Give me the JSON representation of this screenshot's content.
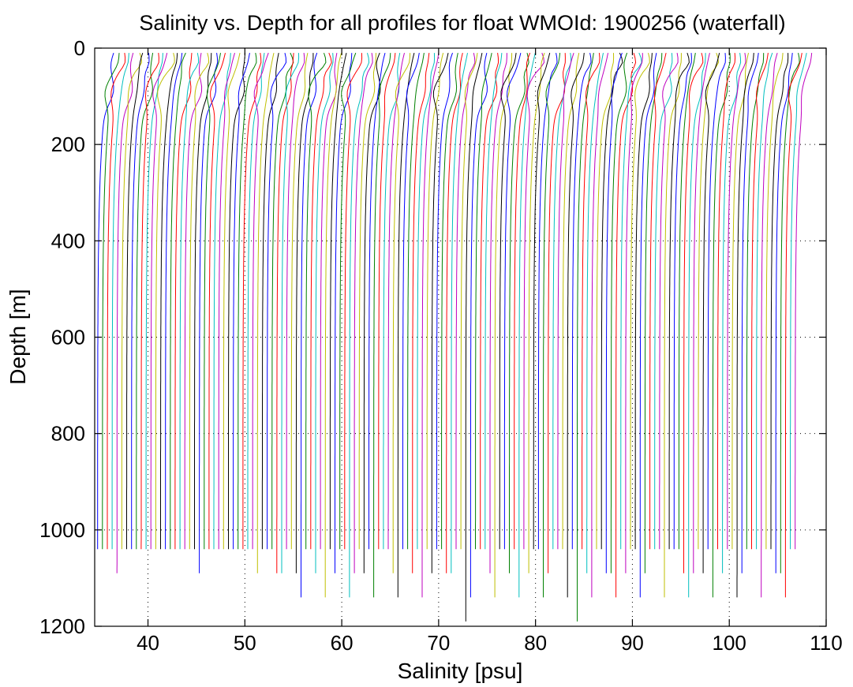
{
  "chart_data": {
    "type": "line",
    "title": "Salinity vs. Depth for all profiles for float WMOId: 1900256 (waterfall)",
    "xlabel": "Salinity [psu]",
    "ylabel": "Depth [m]",
    "xlim": [
      34.5,
      110
    ],
    "ylim": [
      0,
      1200
    ],
    "y_reversed": true,
    "x_ticks": [
      40,
      50,
      60,
      70,
      80,
      90,
      100,
      110
    ],
    "y_ticks": [
      0,
      200,
      400,
      600,
      800,
      1000,
      1200
    ],
    "x_tick_labels": [
      "40",
      "50",
      "60",
      "70",
      "80",
      "90",
      "100",
      "110"
    ],
    "y_tick_labels": [
      "0",
      "200",
      "400",
      "600",
      "800",
      "1000",
      "1200"
    ],
    "grid": "dotted",
    "waterfall": true,
    "profile_count": 145,
    "first_profile_deep_salinity": 34.8,
    "last_profile_deep_salinity": 106.8,
    "offset_per_profile": 0.5,
    "surface_depth": 10,
    "deep_depths": [
      1040,
      1090,
      1140,
      1190
    ],
    "series_colors": [
      "#0000ff",
      "#008000",
      "#ff0000",
      "#00bfbf",
      "#bf00bf",
      "#bfbf00",
      "#000000"
    ]
  }
}
